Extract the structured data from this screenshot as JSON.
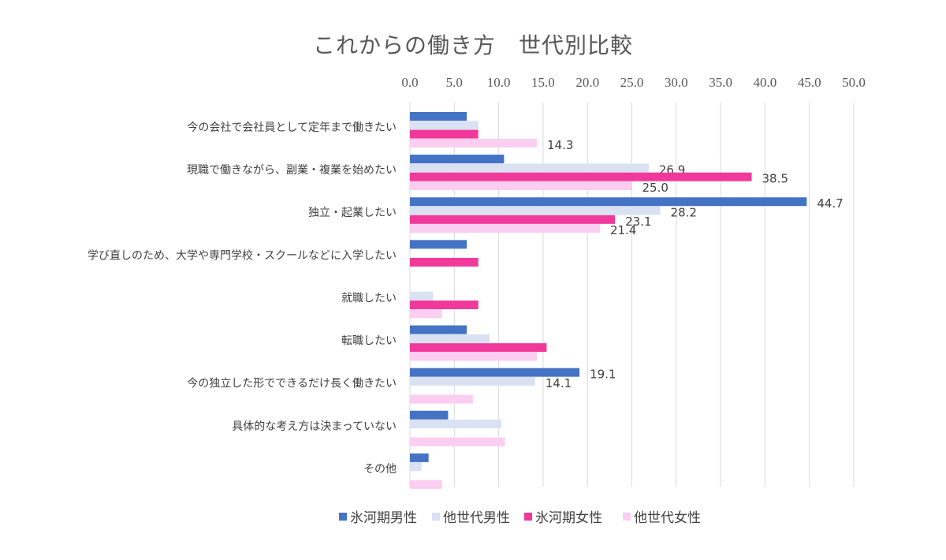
{
  "chart_data": {
    "type": "bar",
    "orientation": "horizontal",
    "title": "これからの働き方　世代別比較",
    "xlim": [
      0,
      50
    ],
    "ticks": [
      "0.0",
      "5.0",
      "10.0",
      "15.0",
      "20.0",
      "25.0",
      "30.0",
      "35.0",
      "40.0",
      "45.0",
      "50.0"
    ],
    "tick_values": [
      0,
      5,
      10,
      15,
      20,
      25,
      30,
      35,
      40,
      45,
      50
    ],
    "axis_position": "top",
    "grid": "vertical",
    "legend_position": "bottom",
    "categories": [
      "今の会社で会社員として定年まで働きたい",
      "現職で働きながら、副業・複業を始めたい",
      "独立・起業したい",
      "学び直しのため、大学や専門学校・スクールなどに入学したい",
      "就職したい",
      "転職したい",
      "今の独立した形でできるだけ長く働きたい",
      "具体的な考え方は決まっていない",
      "その他"
    ],
    "series": [
      {
        "name": "氷河期男性",
        "color": "#4472C4",
        "values": [
          6.4,
          10.6,
          44.7,
          6.4,
          0,
          6.4,
          19.1,
          4.3,
          2.1
        ],
        "labels": [
          "",
          "",
          "44.7",
          "",
          "",
          "",
          "19.1",
          "",
          ""
        ]
      },
      {
        "name": "他世代男性",
        "color": "#D9E1F2",
        "values": [
          7.7,
          26.9,
          28.2,
          0,
          2.6,
          9.0,
          14.1,
          10.3,
          1.3
        ],
        "labels": [
          "",
          "26.9",
          "28.2",
          "",
          "",
          "",
          "14.1",
          "",
          ""
        ]
      },
      {
        "name": "氷河期女性",
        "color": "#F0399B",
        "values": [
          7.7,
          38.5,
          23.1,
          7.7,
          7.7,
          15.4,
          0,
          0,
          0
        ],
        "labels": [
          "",
          "38.5",
          "23.1",
          "",
          "",
          "",
          "",
          "",
          ""
        ]
      },
      {
        "name": "他世代女性",
        "color": "#FBCDF0",
        "values": [
          14.3,
          25.0,
          21.4,
          0,
          3.6,
          14.3,
          7.1,
          10.7,
          3.6
        ],
        "labels": [
          "14.3",
          "25.0",
          "21.4",
          "",
          "",
          "",
          "",
          "",
          ""
        ]
      }
    ]
  }
}
